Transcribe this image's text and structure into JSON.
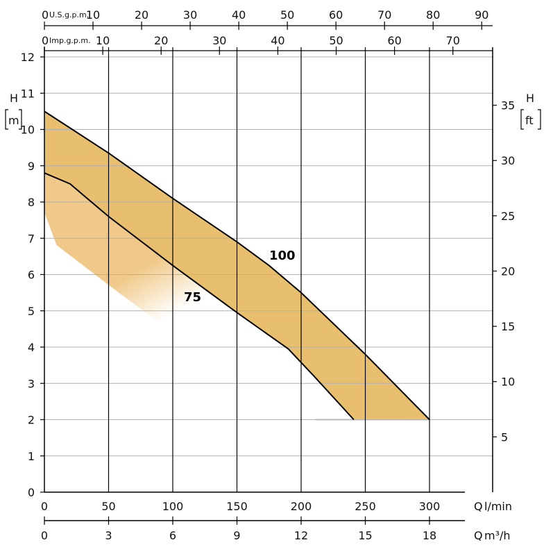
{
  "chart_data": {
    "type": "line",
    "colors": {
      "band": "#e8bf6f",
      "shade": "#f0c98a",
      "grid": "#b0b0b0",
      "line": "#000000"
    },
    "x_primary": {
      "label": "Q",
      "unit": "l/min",
      "lim": [
        0,
        345
      ],
      "ticks": [
        0,
        50,
        100,
        150,
        200,
        250,
        300
      ]
    },
    "x_secondary": {
      "label": "Q",
      "unit": "m³/h",
      "ticks": [
        0,
        3,
        6,
        9,
        12,
        15,
        18
      ]
    },
    "x_top_us": {
      "label": "U.S.g.p.m.",
      "zero": "0",
      "ticks": [
        10,
        20,
        30,
        40,
        50,
        60,
        70,
        80,
        90
      ]
    },
    "x_top_imp": {
      "label": "Imp.g.p.m.",
      "zero": "0",
      "ticks": [
        10,
        20,
        30,
        40,
        50,
        60,
        70
      ]
    },
    "y_left": {
      "label": "H",
      "unit": "m",
      "lim": [
        0,
        12
      ],
      "ticks": [
        0,
        1,
        2,
        3,
        4,
        5,
        6,
        7,
        8,
        9,
        10,
        11,
        12
      ]
    },
    "y_right": {
      "label": "H",
      "unit": "ft",
      "ticks": [
        5,
        10,
        15,
        20,
        25,
        30,
        35
      ]
    },
    "grid": true,
    "series": [
      {
        "name": "100",
        "x": [
          0,
          50,
          100,
          150,
          175,
          200,
          250,
          300
        ],
        "y": [
          10.5,
          9.35,
          8.1,
          6.9,
          6.25,
          5.5,
          3.8,
          2.0
        ]
      },
      {
        "name": "75",
        "x": [
          0,
          20,
          50,
          100,
          150,
          190,
          210,
          241
        ],
        "y": [
          8.8,
          8.5,
          7.6,
          6.25,
          4.95,
          3.95,
          3.2,
          2.0
        ]
      }
    ]
  }
}
